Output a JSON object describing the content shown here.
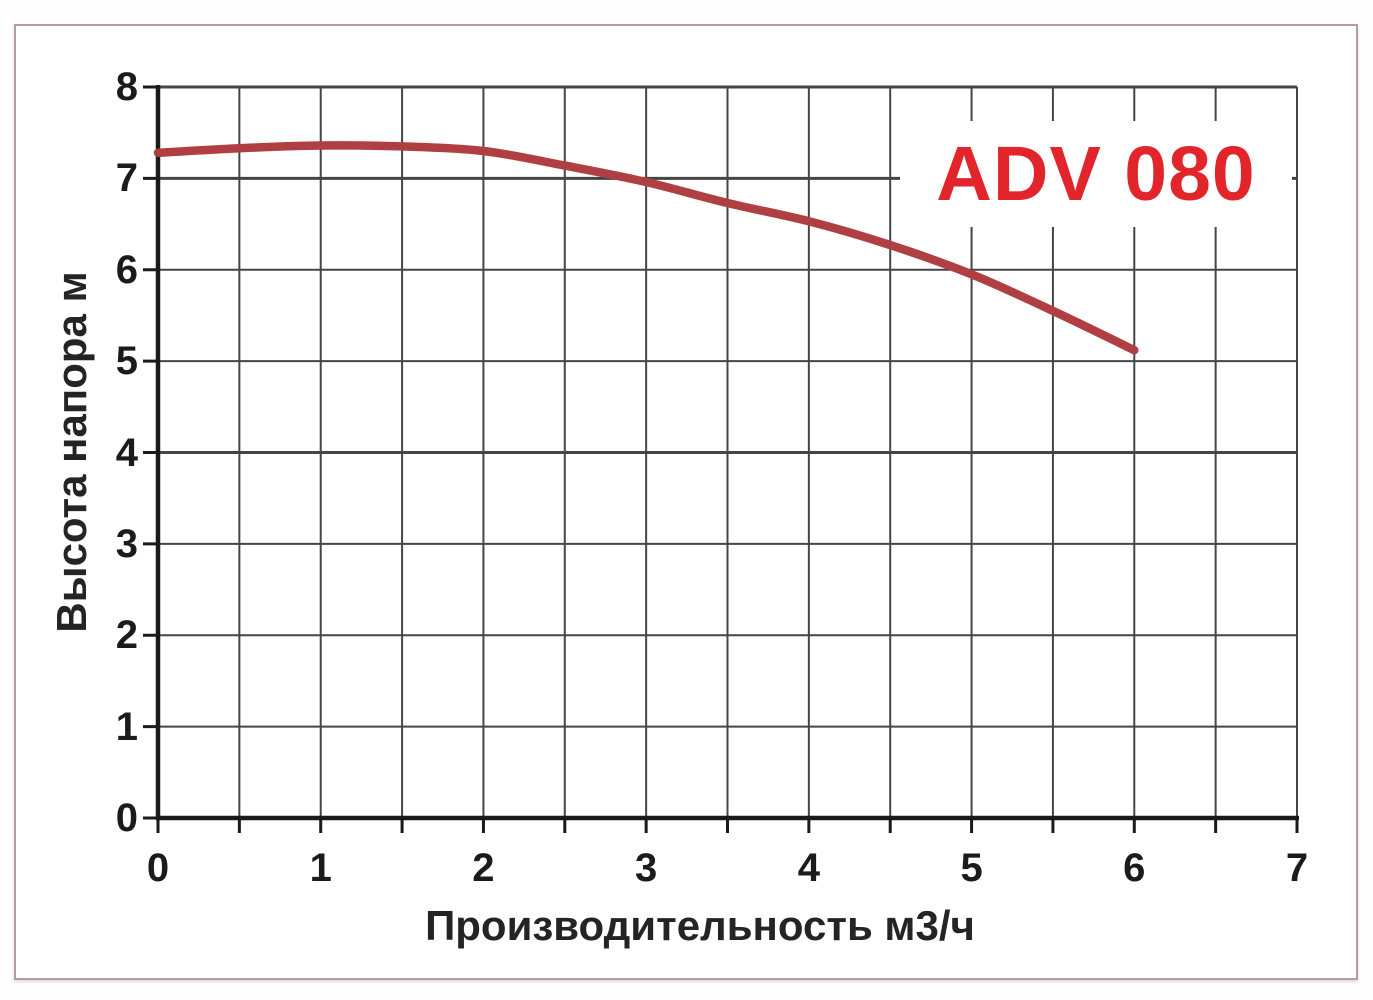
{
  "frame": {
    "border_color": "#b59a9e",
    "background": "#ffffff"
  },
  "chart_data": {
    "type": "line",
    "title": "ADV 080",
    "title_color": "#e2252b",
    "xlabel": "Производительность м3/ч",
    "ylabel": "Высота напора м",
    "xlim": [
      0,
      7
    ],
    "ylim": [
      0,
      8
    ],
    "x_grid_step": 0.5,
    "y_grid_step": 1,
    "x_tick_labels": [
      "0",
      "1",
      "2",
      "3",
      "4",
      "5",
      "6",
      "7"
    ],
    "y_tick_labels": [
      "8",
      "7",
      "6",
      "5",
      "4",
      "3",
      "2",
      "1",
      "0"
    ],
    "grid": true,
    "legend_position": "none",
    "axis_color": "#1a1a1a",
    "grid_color": "#454545",
    "tick_color": "#1b1b1b",
    "series": [
      {
        "name": "ADV 080",
        "color": "#b03f43",
        "stroke_width": 8.5,
        "x": [
          0,
          0.5,
          1,
          1.5,
          2,
          2.5,
          3,
          3.5,
          4,
          4.5,
          5,
          5.5,
          6
        ],
        "y": [
          7.28,
          7.33,
          7.36,
          7.35,
          7.3,
          7.14,
          6.96,
          6.73,
          6.53,
          6.27,
          5.95,
          5.55,
          5.12
        ]
      }
    ]
  }
}
